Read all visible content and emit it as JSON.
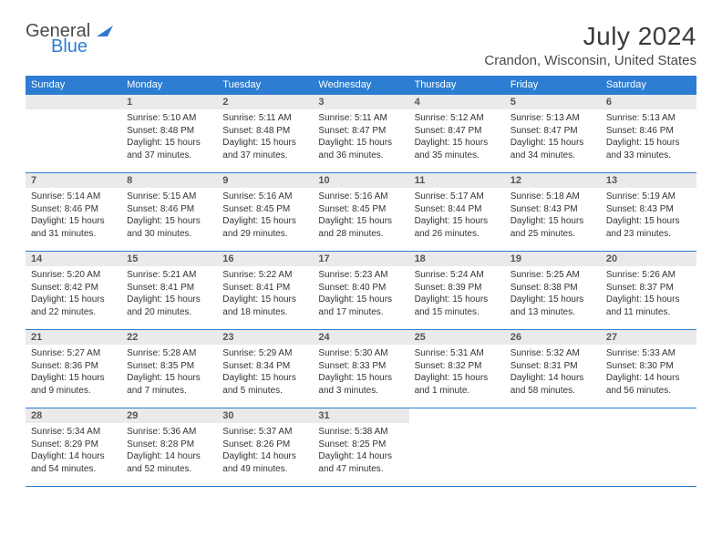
{
  "brand": {
    "general": "General",
    "blue": "Blue"
  },
  "title": "July 2024",
  "location": "Crandon, Wisconsin, United States",
  "dow": [
    "Sunday",
    "Monday",
    "Tuesday",
    "Wednesday",
    "Thursday",
    "Friday",
    "Saturday"
  ],
  "colors": {
    "accent": "#2d7dd2",
    "daynum_bg": "#eaeaea"
  },
  "weeks": [
    [
      null,
      {
        "n": "1",
        "sr": "5:10 AM",
        "ss": "8:48 PM",
        "dl": "15 hours and 37 minutes."
      },
      {
        "n": "2",
        "sr": "5:11 AM",
        "ss": "8:48 PM",
        "dl": "15 hours and 37 minutes."
      },
      {
        "n": "3",
        "sr": "5:11 AM",
        "ss": "8:47 PM",
        "dl": "15 hours and 36 minutes."
      },
      {
        "n": "4",
        "sr": "5:12 AM",
        "ss": "8:47 PM",
        "dl": "15 hours and 35 minutes."
      },
      {
        "n": "5",
        "sr": "5:13 AM",
        "ss": "8:47 PM",
        "dl": "15 hours and 34 minutes."
      },
      {
        "n": "6",
        "sr": "5:13 AM",
        "ss": "8:46 PM",
        "dl": "15 hours and 33 minutes."
      }
    ],
    [
      {
        "n": "7",
        "sr": "5:14 AM",
        "ss": "8:46 PM",
        "dl": "15 hours and 31 minutes."
      },
      {
        "n": "8",
        "sr": "5:15 AM",
        "ss": "8:46 PM",
        "dl": "15 hours and 30 minutes."
      },
      {
        "n": "9",
        "sr": "5:16 AM",
        "ss": "8:45 PM",
        "dl": "15 hours and 29 minutes."
      },
      {
        "n": "10",
        "sr": "5:16 AM",
        "ss": "8:45 PM",
        "dl": "15 hours and 28 minutes."
      },
      {
        "n": "11",
        "sr": "5:17 AM",
        "ss": "8:44 PM",
        "dl": "15 hours and 26 minutes."
      },
      {
        "n": "12",
        "sr": "5:18 AM",
        "ss": "8:43 PM",
        "dl": "15 hours and 25 minutes."
      },
      {
        "n": "13",
        "sr": "5:19 AM",
        "ss": "8:43 PM",
        "dl": "15 hours and 23 minutes."
      }
    ],
    [
      {
        "n": "14",
        "sr": "5:20 AM",
        "ss": "8:42 PM",
        "dl": "15 hours and 22 minutes."
      },
      {
        "n": "15",
        "sr": "5:21 AM",
        "ss": "8:41 PM",
        "dl": "15 hours and 20 minutes."
      },
      {
        "n": "16",
        "sr": "5:22 AM",
        "ss": "8:41 PM",
        "dl": "15 hours and 18 minutes."
      },
      {
        "n": "17",
        "sr": "5:23 AM",
        "ss": "8:40 PM",
        "dl": "15 hours and 17 minutes."
      },
      {
        "n": "18",
        "sr": "5:24 AM",
        "ss": "8:39 PM",
        "dl": "15 hours and 15 minutes."
      },
      {
        "n": "19",
        "sr": "5:25 AM",
        "ss": "8:38 PM",
        "dl": "15 hours and 13 minutes."
      },
      {
        "n": "20",
        "sr": "5:26 AM",
        "ss": "8:37 PM",
        "dl": "15 hours and 11 minutes."
      }
    ],
    [
      {
        "n": "21",
        "sr": "5:27 AM",
        "ss": "8:36 PM",
        "dl": "15 hours and 9 minutes."
      },
      {
        "n": "22",
        "sr": "5:28 AM",
        "ss": "8:35 PM",
        "dl": "15 hours and 7 minutes."
      },
      {
        "n": "23",
        "sr": "5:29 AM",
        "ss": "8:34 PM",
        "dl": "15 hours and 5 minutes."
      },
      {
        "n": "24",
        "sr": "5:30 AM",
        "ss": "8:33 PM",
        "dl": "15 hours and 3 minutes."
      },
      {
        "n": "25",
        "sr": "5:31 AM",
        "ss": "8:32 PM",
        "dl": "15 hours and 1 minute."
      },
      {
        "n": "26",
        "sr": "5:32 AM",
        "ss": "8:31 PM",
        "dl": "14 hours and 58 minutes."
      },
      {
        "n": "27",
        "sr": "5:33 AM",
        "ss": "8:30 PM",
        "dl": "14 hours and 56 minutes."
      }
    ],
    [
      {
        "n": "28",
        "sr": "5:34 AM",
        "ss": "8:29 PM",
        "dl": "14 hours and 54 minutes."
      },
      {
        "n": "29",
        "sr": "5:36 AM",
        "ss": "8:28 PM",
        "dl": "14 hours and 52 minutes."
      },
      {
        "n": "30",
        "sr": "5:37 AM",
        "ss": "8:26 PM",
        "dl": "14 hours and 49 minutes."
      },
      {
        "n": "31",
        "sr": "5:38 AM",
        "ss": "8:25 PM",
        "dl": "14 hours and 47 minutes."
      },
      null,
      null,
      null
    ]
  ],
  "labels": {
    "sunrise": "Sunrise:",
    "sunset": "Sunset:",
    "daylight": "Daylight:"
  }
}
